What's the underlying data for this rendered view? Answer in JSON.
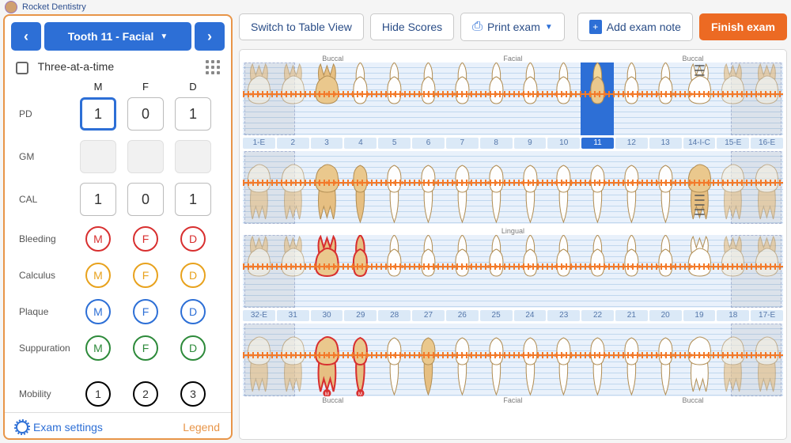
{
  "breadcrumb": "Rocket Dentistry",
  "nav": {
    "prev": "‹",
    "next": "›",
    "tooth_label": "Tooth 11 - Facial"
  },
  "three_at_a_time_label": "Three-at-a-time",
  "mfg": {
    "m": "M",
    "f": "F",
    "d": "D"
  },
  "rows": {
    "pd": {
      "label": "PD",
      "m": "1",
      "f": "0",
      "d": "1",
      "selected": "m"
    },
    "gm": {
      "label": "GM",
      "m": "",
      "f": "",
      "d": ""
    },
    "cal": {
      "label": "CAL",
      "m": "1",
      "f": "0",
      "d": "1"
    }
  },
  "indicators": {
    "bleeding": {
      "label": "Bleeding",
      "color": "#d82f2f",
      "m": "M",
      "f": "F",
      "d": "D"
    },
    "calculus": {
      "label": "Calculus",
      "color": "#e8a21d",
      "m": "M",
      "f": "F",
      "d": "D"
    },
    "plaque": {
      "label": "Plaque",
      "color": "#2d6fd6",
      "m": "M",
      "f": "F",
      "d": "D"
    },
    "suppuration": {
      "label": "Suppuration",
      "color": "#2d8a3a",
      "m": "M",
      "f": "F",
      "d": "D"
    }
  },
  "mobility": {
    "label": "Mobility",
    "color": "#111",
    "v1": "1",
    "v2": "2",
    "v3": "3"
  },
  "footer": {
    "settings": "Exam settings",
    "legend": "Legend"
  },
  "toolbar": {
    "table_view": "Switch to Table View",
    "hide_scores": "Hide Scores",
    "print": "Print exam",
    "add_note": "Add exam note",
    "finish": "Finish exam"
  },
  "arch_labels": {
    "buccal": "Buccal",
    "facial": "Facial",
    "lingual": "Lingual"
  },
  "upper_numbers": [
    "1-E",
    "2",
    "3",
    "4",
    "5",
    "6",
    "7",
    "8",
    "9",
    "10",
    "11",
    "12",
    "13",
    "14-I-C",
    "15-E",
    "16-E"
  ],
  "lower_numbers": [
    "32-E",
    "31",
    "30",
    "29",
    "28",
    "27",
    "26",
    "25",
    "24",
    "23",
    "22",
    "21",
    "20",
    "19",
    "18",
    "17-E"
  ],
  "selected_tooth_index": 10,
  "tooth_colors": {
    "enamel": "#eac88d",
    "enamel_light": "#f6f0e0",
    "root": "#e6bf82",
    "outline": "#b28e54",
    "white": "#fefefe",
    "red_outline": "#d82f2f",
    "badge_fill": "#d82f2f",
    "dot": "#f37a2a"
  },
  "chart_bg": "#e9f1fb",
  "gridline_color": "#c0d7ee"
}
